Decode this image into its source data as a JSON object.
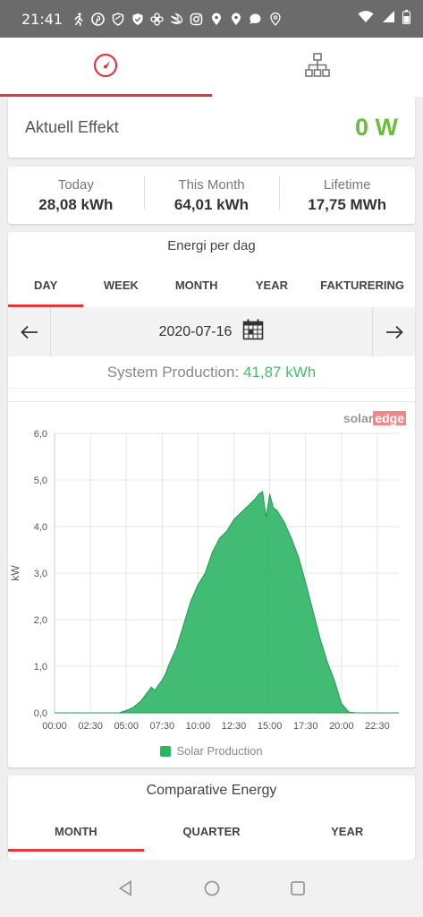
{
  "status_bar": {
    "time": "21:41",
    "notification_icons": [
      "running-icon",
      "pinterest-icon",
      "shield-icon",
      "shield-check-icon",
      "fan-icon",
      "swift-icon",
      "instagram-icon",
      "location-icon",
      "location-icon",
      "chat-icon",
      "location-outline-icon"
    ],
    "system_icons": [
      "wifi-icon",
      "signal-icon",
      "battery-icon"
    ]
  },
  "top_tabs": [
    {
      "icon": "dashboard-gauge-icon",
      "active": true
    },
    {
      "icon": "layout-tree-icon",
      "active": false
    }
  ],
  "effekt": {
    "label": "Aktuell Effekt",
    "value": "0 W"
  },
  "totals": [
    {
      "label": "Today",
      "value": "28,08 kWh"
    },
    {
      "label": "This Month",
      "value": "64,01 kWh"
    },
    {
      "label": "Lifetime",
      "value": "17,75 MWh"
    }
  ],
  "energy": {
    "title": "Energi per dag",
    "periods": [
      "DAY",
      "WEEK",
      "MONTH",
      "YEAR",
      "FAKTURERING"
    ],
    "active_period": "DAY",
    "date": "2020-07-16",
    "production_label": "System Production:",
    "production_value": "41,87 kWh",
    "brand_solar": "solar",
    "brand_edge": "edge"
  },
  "chart_data": {
    "type": "area",
    "ylabel": "kW",
    "ylim": [
      0,
      6
    ],
    "yticks": [
      "0,0",
      "1,0",
      "2,0",
      "3,0",
      "4,0",
      "5,0",
      "6,0"
    ],
    "xticks": [
      "00:00",
      "02:30",
      "05:00",
      "07:30",
      "10:00",
      "12:30",
      "15:00",
      "17:30",
      "20:00",
      "22:30"
    ],
    "xlim_hours": [
      0,
      24
    ],
    "grid": true,
    "legend_position": "bottom",
    "series": [
      {
        "name": "Solar Production",
        "color": "#2db566",
        "x_hours": [
          0,
          4.5,
          5.0,
          5.5,
          6.0,
          6.25,
          6.5,
          6.75,
          7.0,
          7.25,
          7.5,
          7.75,
          8.0,
          8.5,
          9.0,
          9.5,
          10.0,
          10.5,
          11.0,
          11.5,
          12.0,
          12.5,
          13.0,
          13.5,
          14.0,
          14.25,
          14.5,
          14.75,
          15.0,
          15.25,
          15.5,
          16.0,
          16.5,
          17.0,
          17.5,
          18.0,
          18.5,
          19.0,
          19.5,
          20.0,
          20.5,
          21.0,
          24
        ],
        "kw": [
          0,
          0,
          0.05,
          0.12,
          0.25,
          0.35,
          0.45,
          0.55,
          0.48,
          0.6,
          0.7,
          0.85,
          1.05,
          1.4,
          1.9,
          2.4,
          2.75,
          3.0,
          3.45,
          3.75,
          3.9,
          4.15,
          4.3,
          4.45,
          4.6,
          4.7,
          4.75,
          4.2,
          4.7,
          4.4,
          4.35,
          4.1,
          3.75,
          3.35,
          2.8,
          2.2,
          1.6,
          1.1,
          0.7,
          0.2,
          0.02,
          0,
          0
        ]
      }
    ]
  },
  "comparative": {
    "title": "Comparative Energy",
    "periods": [
      "MONTH",
      "QUARTER",
      "YEAR"
    ],
    "active_period": "MONTH"
  },
  "nav_bar": [
    "back-icon",
    "home-icon",
    "recents-icon"
  ]
}
